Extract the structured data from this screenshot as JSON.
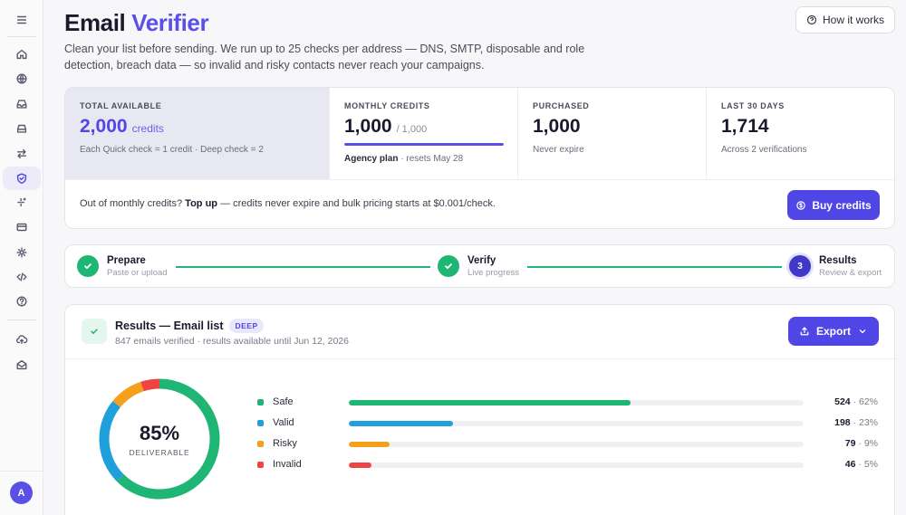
{
  "sidebar": {
    "items": [
      {
        "name": "menu",
        "icon": "menu-icon"
      },
      {
        "name": "home",
        "icon": "home-icon"
      },
      {
        "name": "domains",
        "icon": "globe-icon"
      },
      {
        "name": "inbox",
        "icon": "inbox-icon"
      },
      {
        "name": "archive",
        "icon": "tray-icon"
      },
      {
        "name": "transfers",
        "icon": "arrows-icon"
      },
      {
        "name": "verifier",
        "icon": "shield-check-icon",
        "active": true
      },
      {
        "name": "ai",
        "icon": "sparkles-icon"
      },
      {
        "name": "billing",
        "icon": "credit-card-icon"
      },
      {
        "name": "settings",
        "icon": "gear-icon"
      },
      {
        "name": "api",
        "icon": "code-icon"
      },
      {
        "name": "help",
        "icon": "help-icon"
      },
      {
        "name": "upload",
        "icon": "cloud-upload-icon"
      },
      {
        "name": "mail",
        "icon": "envelope-open-icon"
      }
    ],
    "avatar": "A"
  },
  "header": {
    "title_plain": "Email",
    "title_accent": "Verifier",
    "subtitle": "Clean your list before sending. We run up to 25 checks per address — DNS, SMTP, disposable and role detection, breach data — so invalid and risky contacts never reach your campaigns.",
    "how_label": "How it works"
  },
  "stats": {
    "total": {
      "label": "TOTAL AVAILABLE",
      "value": "2,000",
      "unit": "credits",
      "note": "Each Quick check = 1 credit · Deep check = 2"
    },
    "monthly": {
      "label": "MONTHLY CREDITS",
      "value": "1,000",
      "of": "/ 1,000",
      "progress": 1.0,
      "plan": "Agency plan",
      "resets": "· resets May 28"
    },
    "purchased": {
      "label": "PURCHASED",
      "value": "1,000",
      "note": "Never expire"
    },
    "last30": {
      "label": "LAST 30 DAYS",
      "value": "1,714",
      "note": "Across 2 verifications"
    },
    "topup_prefix": "Out of monthly credits?",
    "topup_bold": "Top up",
    "topup_suffix": "— credits never expire and bulk pricing starts at $0.001/check.",
    "buy_label": "Buy credits"
  },
  "stepper": {
    "steps": [
      {
        "title": "Prepare",
        "sub": "Paste or upload",
        "state": "done"
      },
      {
        "title": "Verify",
        "sub": "Live progress",
        "state": "done"
      },
      {
        "title": "Results",
        "sub": "Review & export",
        "state": "current",
        "number": "3"
      }
    ]
  },
  "results": {
    "title": "Results — Email list",
    "badge": "DEEP",
    "sub": "847 emails verified · results available until Jun 12, 2026",
    "export_label": "Export",
    "deliverable_pct": "85%",
    "deliverable_label": "DELIVERABLE",
    "colors": {
      "safe": "#1fb574",
      "valid": "#1f9fdc",
      "risky": "#f5a01a",
      "invalid": "#ef4444"
    },
    "categories": [
      {
        "key": "safe",
        "name": "Safe",
        "count": "524",
        "pct": "62%",
        "fraction": 0.62
      },
      {
        "key": "valid",
        "name": "Valid",
        "count": "198",
        "pct": "23%",
        "fraction": 0.23
      },
      {
        "key": "risky",
        "name": "Risky",
        "count": "79",
        "pct": "9%",
        "fraction": 0.09
      },
      {
        "key": "invalid",
        "name": "Invalid",
        "count": "46",
        "pct": "5%",
        "fraction": 0.05
      }
    ]
  }
}
